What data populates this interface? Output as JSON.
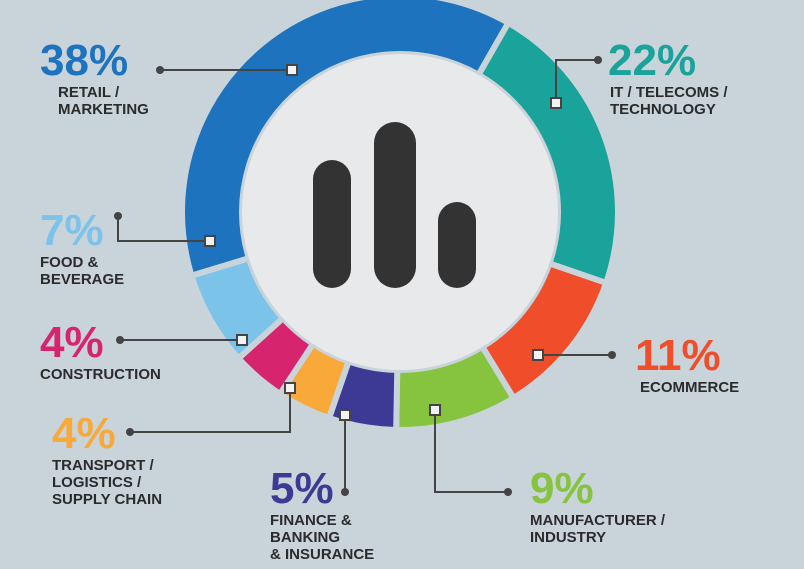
{
  "chart_data": {
    "type": "pie",
    "categories": [
      [
        "RETAIL /",
        "MARKETING"
      ],
      [
        "IT / TELECOMS /",
        "TECHNOLOGY"
      ],
      [
        "ECOMMERCE"
      ],
      [
        "MANUFACTURER /",
        "INDUSTRY"
      ],
      [
        "FINANCE &",
        "BANKING",
        "& INSURANCE"
      ],
      [
        "TRANSPORT /",
        "LOGISTICS /",
        "SUPPLY CHAIN"
      ],
      [
        "CONSTRUCTION"
      ],
      [
        "FOOD &",
        "BEVERAGE"
      ]
    ],
    "values": [
      38,
      22,
      11,
      9,
      5,
      4,
      4,
      7
    ],
    "value_labels": [
      "38%",
      "22%",
      "11%",
      "9%",
      "5%",
      "4%",
      "4%",
      "7%"
    ],
    "colors": [
      "#1e73be",
      "#1aa39a",
      "#f04e2b",
      "#86c440",
      "#3d3a96",
      "#f8a93a",
      "#d6246e",
      "#7cc3ea"
    ]
  }
}
